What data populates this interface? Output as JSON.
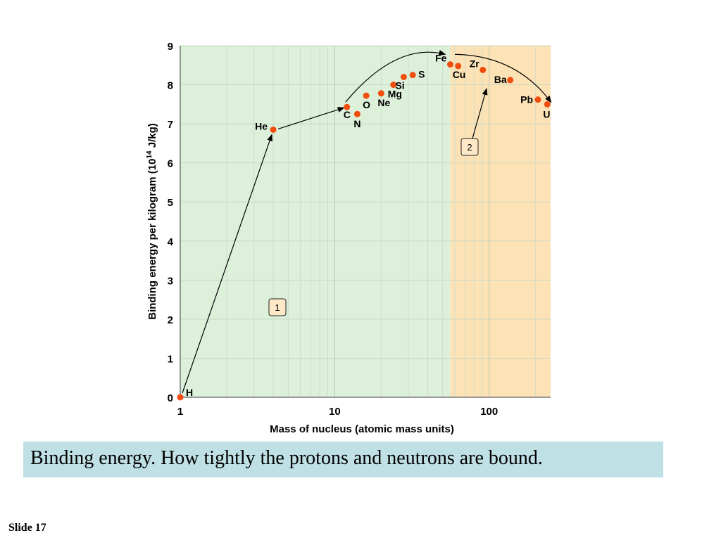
{
  "slide": {
    "caption": "Binding energy. How tightly the protons and neutrons are bound.",
    "slide_number": "Slide 17"
  },
  "chart_data": {
    "type": "scatter",
    "xlabel": "Mass of nucleus (atomic mass units)",
    "ylabel_main": "Binding energy per kilogram (10",
    "ylabel_exp": "14",
    "ylabel_unit": " J/kg)",
    "x_scale": "log",
    "xlim": [
      1,
      250
    ],
    "ylim": [
      0,
      9
    ],
    "x_ticks": [
      1,
      10,
      100
    ],
    "x_tick_labels": [
      "1",
      "10",
      "100"
    ],
    "y_ticks": [
      0,
      1,
      2,
      3,
      4,
      5,
      6,
      7,
      8,
      9
    ],
    "y_tick_labels": [
      "0",
      "1",
      "2",
      "3",
      "4",
      "5",
      "6",
      "7",
      "8",
      "9"
    ],
    "grid": true,
    "regions": [
      {
        "id": "1",
        "label": "1",
        "x_from": 1,
        "x_to": 56,
        "color": "#dcf0da"
      },
      {
        "id": "2",
        "label": "2",
        "x_from": 56,
        "x_to": 250,
        "color": "#fde2b5"
      }
    ],
    "point_color": "#f04d0e",
    "points": [
      {
        "label": "H",
        "x": 1,
        "y": 0
      },
      {
        "label": "He",
        "x": 4,
        "y": 6.85
      },
      {
        "label": "C",
        "x": 12,
        "y": 7.43
      },
      {
        "label": "N",
        "x": 14,
        "y": 7.25
      },
      {
        "label": "O",
        "x": 16,
        "y": 7.72
      },
      {
        "label": "Ne",
        "x": 20,
        "y": 7.78
      },
      {
        "label": "Mg",
        "x": 24,
        "y": 8.0
      },
      {
        "label": "Si",
        "x": 28,
        "y": 8.2
      },
      {
        "label": "S",
        "x": 32,
        "y": 8.25
      },
      {
        "label": "Fe",
        "x": 56,
        "y": 8.52
      },
      {
        "label": "Cu",
        "x": 63,
        "y": 8.48
      },
      {
        "label": "Zr",
        "x": 91,
        "y": 8.38
      },
      {
        "label": "Ba",
        "x": 137,
        "y": 8.12
      },
      {
        "label": "Pb",
        "x": 207,
        "y": 7.62
      },
      {
        "label": "U",
        "x": 238,
        "y": 7.5
      }
    ]
  }
}
